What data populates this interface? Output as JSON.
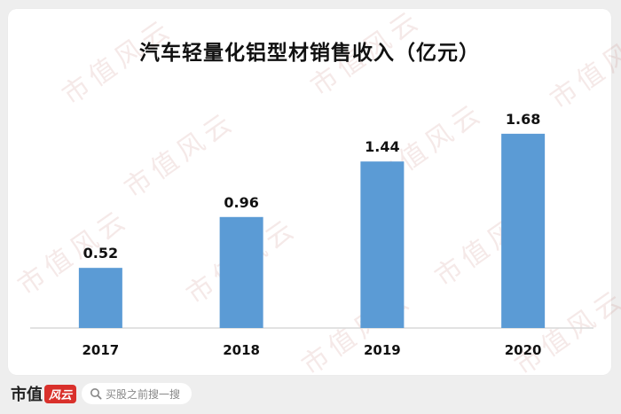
{
  "chart_data": {
    "type": "bar",
    "title": "汽车轻量化铝型材销售收入（亿元）",
    "categories": [
      "2017",
      "2018",
      "2019",
      "2020"
    ],
    "values": [
      0.52,
      0.96,
      1.44,
      1.68
    ],
    "value_labels": [
      "0.52",
      "0.96",
      "1.44",
      "1.68"
    ],
    "ylim": [
      0,
      1.84
    ],
    "grid": false,
    "legend": "none",
    "bar_color": "#5b9bd5",
    "axis_color": "#d9d9d9"
  },
  "watermark": "市值风云",
  "footer": {
    "logo_text": "市值",
    "logo_mark": "风云",
    "search_icon": "search-icon",
    "search_placeholder": "买股之前搜一搜"
  }
}
